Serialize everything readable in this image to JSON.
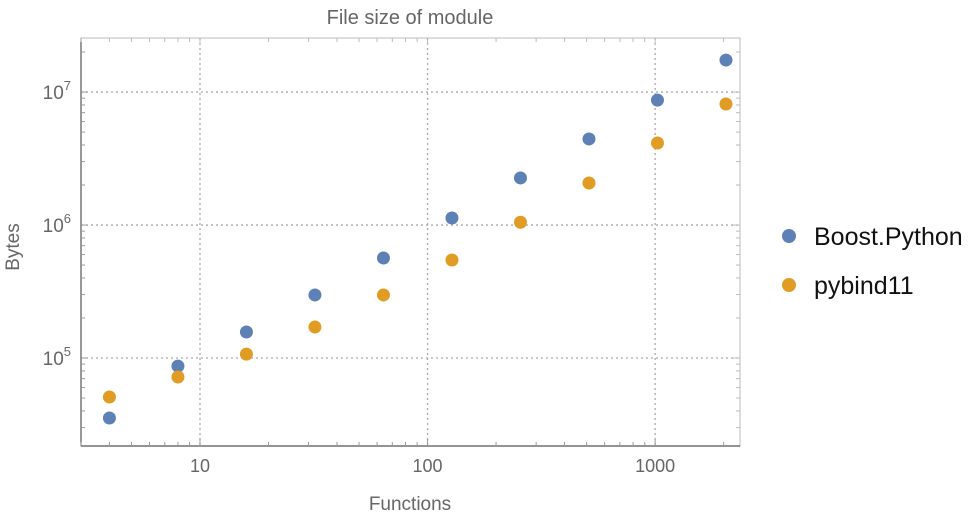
{
  "chart_data": {
    "type": "scatter",
    "title": "File size of module",
    "xlabel": "Functions",
    "ylabel": "Bytes",
    "xscale": "log",
    "yscale": "log",
    "xlim": [
      3,
      2360
    ],
    "ylim": [
      21800,
      25500000
    ],
    "x_ticks": [
      {
        "value": 10,
        "label": "10"
      },
      {
        "value": 100,
        "label": "100"
      },
      {
        "value": 1000,
        "label": "1000"
      }
    ],
    "y_ticks": [
      {
        "value": 100000,
        "base": "10",
        "exp": "5"
      },
      {
        "value": 1000000,
        "base": "10",
        "exp": "6"
      },
      {
        "value": 10000000,
        "base": "10",
        "exp": "7"
      }
    ],
    "grid": true,
    "legend_position": "right",
    "x": [
      4,
      8,
      16,
      32,
      64,
      128,
      256,
      512,
      1024,
      2048
    ],
    "series": [
      {
        "name": "Boost.Python",
        "color": "#5e81b5",
        "values": [
          35400,
          87000,
          157000,
          298000,
          565000,
          1130000,
          2260000,
          4440000,
          8700000,
          17400000
        ]
      },
      {
        "name": "pybind11",
        "color": "#e19c24",
        "values": [
          50900,
          72000,
          107000,
          171000,
          298000,
          546000,
          1050000,
          2070000,
          4140000,
          8130000
        ]
      }
    ]
  }
}
